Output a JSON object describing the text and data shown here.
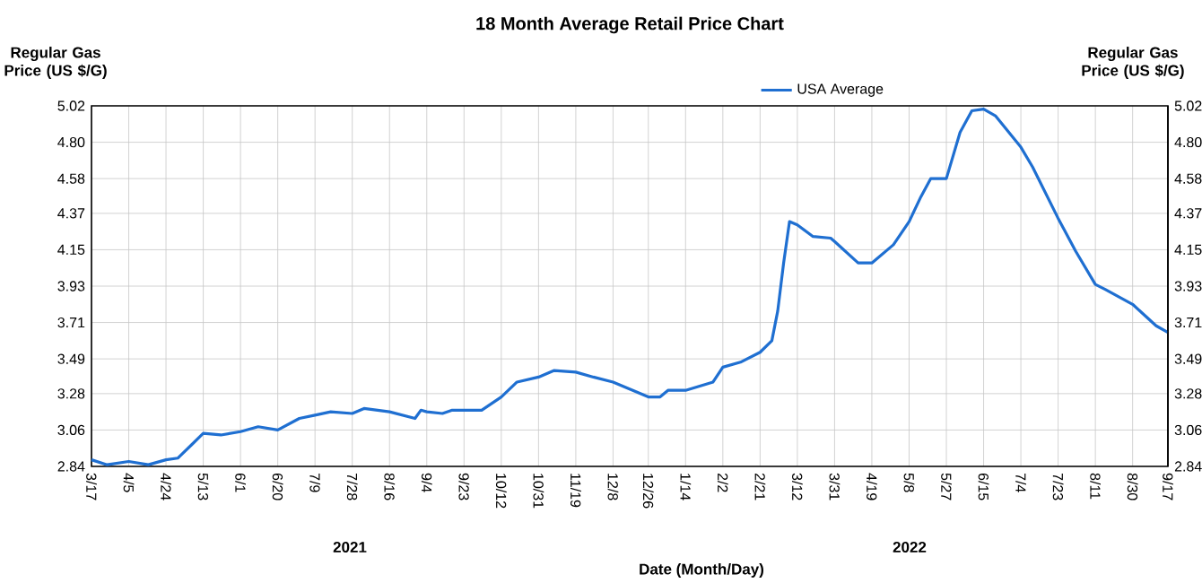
{
  "chart_data": {
    "type": "line",
    "title": "18 Month Average Retail Price Chart",
    "xlabel": "Date (Month/Day)",
    "ylabel": "Regular Gas Price (US $/G)",
    "y2label": "Regular Gas Price (US $/G)",
    "annotations": [
      "2021",
      "2022"
    ],
    "x": [
      "2021-03-17",
      "2021-03-25",
      "2021-04-05",
      "2021-04-15",
      "2021-04-24",
      "2021-04-30",
      "2021-05-07",
      "2021-05-13",
      "2021-05-22",
      "2021-06-01",
      "2021-06-10",
      "2021-06-20",
      "2021-07-01",
      "2021-07-09",
      "2021-07-17",
      "2021-07-28",
      "2021-08-03",
      "2021-08-16",
      "2021-08-29",
      "2021-09-01",
      "2021-09-04",
      "2021-09-12",
      "2021-09-17",
      "2021-09-23",
      "2021-10-02",
      "2021-10-12",
      "2021-10-20",
      "2021-10-31",
      "2021-11-08",
      "2021-11-19",
      "2021-11-28",
      "2021-12-08",
      "2021-12-26",
      "2022-01-01",
      "2022-01-05",
      "2022-01-14",
      "2022-01-28",
      "2022-02-02",
      "2022-02-11",
      "2022-02-21",
      "2022-02-27",
      "2022-03-02",
      "2022-03-05",
      "2022-03-08",
      "2022-03-12",
      "2022-03-20",
      "2022-03-29",
      "2022-03-31",
      "2022-04-12",
      "2022-04-19",
      "2022-04-30",
      "2022-05-08",
      "2022-05-14",
      "2022-05-19",
      "2022-05-27",
      "2022-06-03",
      "2022-06-09",
      "2022-06-15",
      "2022-06-21",
      "2022-07-04",
      "2022-07-10",
      "2022-07-23",
      "2022-08-01",
      "2022-08-11",
      "2022-08-16",
      "2022-08-30",
      "2022-09-11",
      "2022-09-17"
    ],
    "series": [
      {
        "name": "USA Average",
        "color": "#1f6fd1",
        "values": [
          2.88,
          2.85,
          2.87,
          2.85,
          2.88,
          2.89,
          2.97,
          3.04,
          3.03,
          3.05,
          3.08,
          3.06,
          3.13,
          3.15,
          3.17,
          3.16,
          3.19,
          3.17,
          3.13,
          3.18,
          3.17,
          3.16,
          3.18,
          3.18,
          3.18,
          3.26,
          3.35,
          3.38,
          3.42,
          3.41,
          3.38,
          3.35,
          3.26,
          3.26,
          3.3,
          3.3,
          3.35,
          3.44,
          3.47,
          3.53,
          3.6,
          3.78,
          4.07,
          4.32,
          4.3,
          4.23,
          4.22,
          4.2,
          4.07,
          4.07,
          4.18,
          4.32,
          4.47,
          4.58,
          4.58,
          4.86,
          4.99,
          5.0,
          4.96,
          4.77,
          4.65,
          4.34,
          4.14,
          3.94,
          3.91,
          3.82,
          3.69,
          3.65
        ]
      }
    ],
    "xlim": [
      "2021-03-17",
      "2022-09-17"
    ],
    "xticks": [
      {
        "value": "2021-03-17",
        "label": "3/17"
      },
      {
        "value": "2021-04-05",
        "label": "4/5"
      },
      {
        "value": "2021-04-24",
        "label": "4/24"
      },
      {
        "value": "2021-05-13",
        "label": "5/13"
      },
      {
        "value": "2021-06-01",
        "label": "6/1"
      },
      {
        "value": "2021-06-20",
        "label": "6/20"
      },
      {
        "value": "2021-07-09",
        "label": "7/9"
      },
      {
        "value": "2021-07-28",
        "label": "7/28"
      },
      {
        "value": "2021-08-16",
        "label": "8/16"
      },
      {
        "value": "2021-09-04",
        "label": "9/4"
      },
      {
        "value": "2021-09-23",
        "label": "9/23"
      },
      {
        "value": "2021-10-12",
        "label": "10/12"
      },
      {
        "value": "2021-10-31",
        "label": "10/31"
      },
      {
        "value": "2021-11-19",
        "label": "11/19"
      },
      {
        "value": "2021-12-08",
        "label": "12/8"
      },
      {
        "value": "2021-12-26",
        "label": "12/26"
      },
      {
        "value": "2022-01-14",
        "label": "1/14"
      },
      {
        "value": "2022-02-02",
        "label": "2/2"
      },
      {
        "value": "2022-02-21",
        "label": "2/21"
      },
      {
        "value": "2022-03-12",
        "label": "3/12"
      },
      {
        "value": "2022-03-31",
        "label": "3/31"
      },
      {
        "value": "2022-04-19",
        "label": "4/19"
      },
      {
        "value": "2022-05-08",
        "label": "5/8"
      },
      {
        "value": "2022-05-27",
        "label": "5/27"
      },
      {
        "value": "2022-06-15",
        "label": "6/15"
      },
      {
        "value": "2022-07-04",
        "label": "7/4"
      },
      {
        "value": "2022-07-23",
        "label": "7/23"
      },
      {
        "value": "2022-08-11",
        "label": "8/11"
      },
      {
        "value": "2022-08-30",
        "label": "8/30"
      },
      {
        "value": "2022-09-17",
        "label": "9/17"
      }
    ],
    "ylim": [
      2.84,
      5.02
    ],
    "yticks": [
      2.84,
      3.06,
      3.28,
      3.49,
      3.71,
      3.93,
      4.15,
      4.37,
      4.58,
      {
        "value": 4.8,
        "label": "4.80"
      },
      5.02
    ],
    "y2lim": [
      2.84,
      5.02
    ],
    "y2ticks": [
      2.84,
      3.06,
      3.28,
      3.49,
      3.71,
      3.93,
      4.15,
      4.37,
      4.58,
      {
        "value": 4.8,
        "label": "4.80"
      },
      5.02
    ],
    "grid": true,
    "legend": "top",
    "marker": "none",
    "line_style": "solid"
  }
}
